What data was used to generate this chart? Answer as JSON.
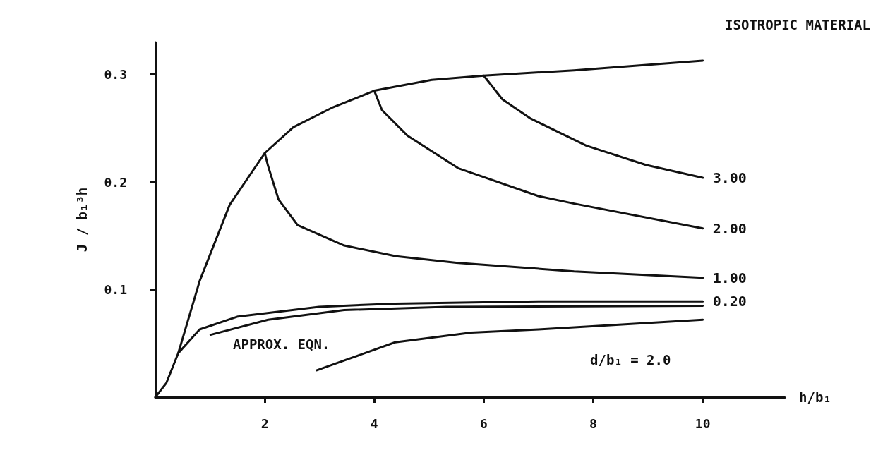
{
  "chart_data": {
    "type": "line",
    "title": "ISOTROPIC MATERIAL",
    "xlabel": "h/b₁",
    "ylabel": "J / b₁³h",
    "xlim": [
      0,
      11.5
    ],
    "ylim": [
      0,
      0.33
    ],
    "xticks": [
      2,
      4,
      6,
      8,
      10
    ],
    "yticks": [
      0.1,
      0.2,
      0.3
    ],
    "grid": false,
    "marker": "none",
    "line_style": "solid",
    "color": "#111111",
    "annotations": [
      "APPROX. EQN.",
      "d/b₁ = 2.0"
    ],
    "series": [
      {
        "x": [
          0,
          0.2,
          0.42,
          0.81,
          1.36,
          2.0,
          2.52,
          3.22,
          4.0,
          5.05,
          6.0,
          7.65,
          10.0
        ],
        "values": [
          0,
          0.013,
          0.041,
          0.108,
          0.179,
          0.227,
          0.251,
          0.269,
          0.285,
          0.295,
          0.299,
          0.304,
          0.313
        ]
      },
      {
        "name": "1.00",
        "x": [
          2,
          2.06,
          2.25,
          2.6,
          3.45,
          4.4,
          5.5,
          7.65,
          10
        ],
        "values": [
          0.227,
          0.215,
          0.184,
          0.16,
          0.141,
          0.131,
          0.125,
          0.117,
          0.111
        ]
      },
      {
        "name": "2.00",
        "x": [
          4,
          4.14,
          4.61,
          5.53,
          7.0,
          7.65,
          10
        ],
        "values": [
          0.285,
          0.267,
          0.243,
          0.213,
          0.187,
          0.18,
          0.157
        ]
      },
      {
        "name": "3.00",
        "x": [
          6,
          6.34,
          6.86,
          7.87,
          8.96,
          10
        ],
        "values": [
          0.299,
          0.277,
          0.259,
          0.234,
          0.216,
          0.204
        ]
      },
      {
        "name": "0.20",
        "x": [
          0.42,
          0.81,
          1.51,
          2.99,
          4.38,
          7.0,
          10
        ],
        "values": [
          0.041,
          0.063,
          0.075,
          0.084,
          0.087,
          0.089,
          0.089
        ]
      },
      {
        "x": [
          1.01,
          2.06,
          3.45,
          5.31,
          10
        ],
        "values": [
          0.058,
          0.072,
          0.081,
          0.084,
          0.085
        ]
      },
      {
        "x": [
          2.95,
          4.38,
          5.77,
          7.0,
          10
        ],
        "values": [
          0.025,
          0.051,
          0.06,
          0.063,
          0.072
        ]
      }
    ]
  }
}
